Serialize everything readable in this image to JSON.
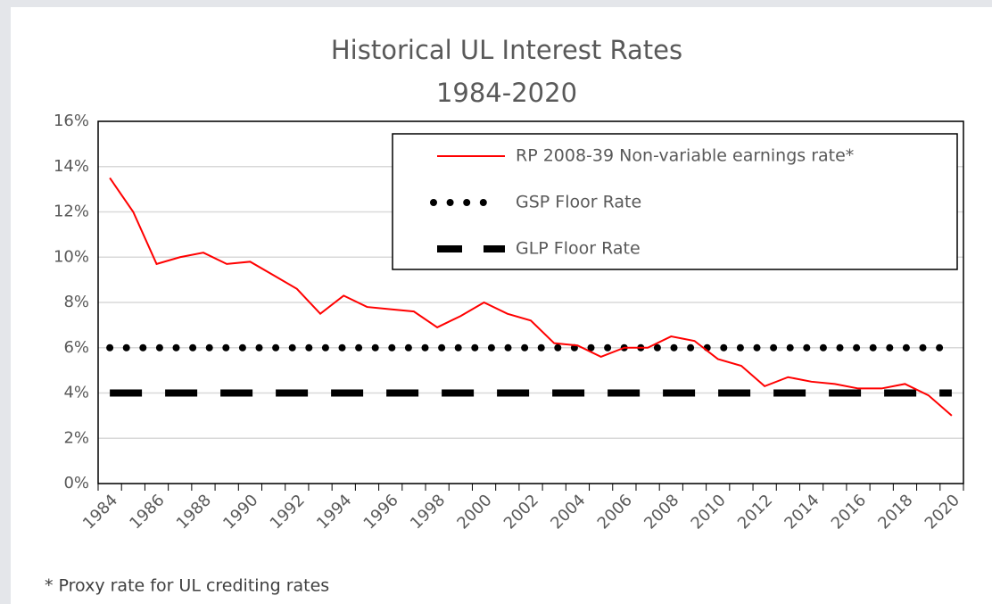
{
  "chart_data": {
    "type": "line",
    "title": "Historical UL Interest Rates",
    "subtitle": "1984-2020",
    "footnote": "* Proxy rate for UL crediting rates",
    "categories": [
      "1984",
      null,
      "1986",
      null,
      "1988",
      null,
      "1990",
      null,
      "1992",
      null,
      "1994",
      null,
      "1996",
      null,
      "1998",
      null,
      "2000",
      null,
      "2002",
      null,
      "2004",
      null,
      "2006",
      null,
      "2008",
      null,
      "2010",
      null,
      "2012",
      null,
      "2014",
      null,
      "2016",
      null,
      "2018",
      null,
      "2020"
    ],
    "series": [
      {
        "name": "RP 2008-39 Non-variable earnings rate*",
        "color": "#ff0000",
        "style": "solid",
        "values": [
          13.5,
          12.0,
          9.7,
          10.0,
          10.2,
          9.7,
          9.8,
          9.2,
          8.6,
          7.5,
          8.3,
          7.8,
          7.7,
          7.6,
          6.9,
          7.4,
          8.0,
          7.5,
          7.2,
          6.2,
          6.1,
          5.6,
          6.0,
          6.0,
          6.5,
          6.3,
          5.5,
          5.2,
          4.3,
          4.7,
          4.5,
          4.4,
          4.2,
          4.2,
          4.4,
          3.9,
          3.0
        ]
      },
      {
        "name": "GSP Floor Rate",
        "color": "#000000",
        "style": "dotted",
        "values": [
          6,
          6,
          6,
          6,
          6,
          6,
          6,
          6,
          6,
          6,
          6,
          6,
          6,
          6,
          6,
          6,
          6,
          6,
          6,
          6,
          6,
          6,
          6,
          6,
          6,
          6,
          6,
          6,
          6,
          6,
          6,
          6,
          6,
          6,
          6,
          6,
          6
        ]
      },
      {
        "name": "GLP Floor Rate",
        "color": "#000000",
        "style": "dashed",
        "values": [
          4,
          4,
          4,
          4,
          4,
          4,
          4,
          4,
          4,
          4,
          4,
          4,
          4,
          4,
          4,
          4,
          4,
          4,
          4,
          4,
          4,
          4,
          4,
          4,
          4,
          4,
          4,
          4,
          4,
          4,
          4,
          4,
          4,
          4,
          4,
          4,
          4
        ]
      }
    ],
    "ylim": [
      0,
      16
    ],
    "yticks": [
      {
        "value": 0,
        "label": "0%"
      },
      {
        "value": 2,
        "label": "2%"
      },
      {
        "value": 4,
        "label": "4%"
      },
      {
        "value": 6,
        "label": "6%"
      },
      {
        "value": 8,
        "label": "8%"
      },
      {
        "value": 10,
        "label": "10%"
      },
      {
        "value": 12,
        "label": "12%"
      },
      {
        "value": 14,
        "label": "14%"
      },
      {
        "value": 16,
        "label": "16%"
      }
    ],
    "grid": true,
    "legend": "top-right"
  }
}
